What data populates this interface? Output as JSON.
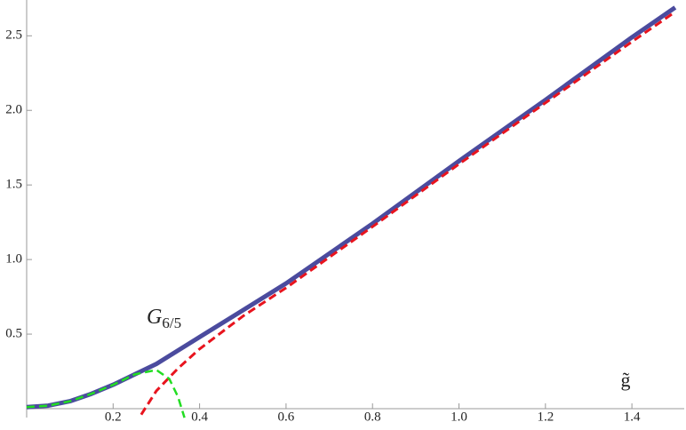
{
  "chart_data": {
    "type": "line",
    "xlabel": "g̃",
    "annotations": [
      {
        "text": "G",
        "subscript": "6/5"
      }
    ],
    "xlim": [
      0,
      1.52
    ],
    "ylim": [
      0,
      2.74
    ],
    "xticks": [
      0.2,
      0.4,
      0.6,
      0.8,
      {
        "value": 1,
        "label": "1.0"
      },
      1.2,
      1.4
    ],
    "yticks": [
      0.5,
      {
        "value": 1,
        "label": "1.0"
      },
      1.5,
      {
        "value": 2,
        "label": "2.0"
      },
      2.5
    ],
    "series": [
      {
        "color": "#4b4b9e",
        "dash": false,
        "width": 5,
        "x": [
          0,
          0.05,
          0.1,
          0.15,
          0.2,
          0.25,
          0.3,
          0.35,
          0.4,
          0.5,
          0.6,
          0.8,
          1.0,
          1.2,
          1.4,
          1.5
        ],
        "values": [
          0.01,
          0.02,
          0.05,
          0.1,
          0.16,
          0.23,
          0.3,
          0.39,
          0.48,
          0.66,
          0.84,
          1.24,
          1.66,
          2.07,
          2.49,
          2.69
        ]
      },
      {
        "color": "#e8141e",
        "dash": true,
        "width": 3,
        "x": [
          0.265,
          0.3,
          0.35,
          0.4,
          0.5,
          0.6,
          0.8,
          1.0,
          1.2,
          1.4,
          1.5
        ],
        "values": [
          -0.04,
          0.12,
          0.27,
          0.4,
          0.62,
          0.81,
          1.22,
          1.64,
          2.05,
          2.46,
          2.66
        ]
      },
      {
        "color": "#22dd22",
        "dash": true,
        "width": 2.5,
        "x": [
          0,
          0.05,
          0.1,
          0.15,
          0.2,
          0.25,
          0.3,
          0.33,
          0.35,
          0.365
        ],
        "values": [
          0.01,
          0.02,
          0.05,
          0.1,
          0.16,
          0.23,
          0.26,
          0.2,
          0.08,
          -0.06
        ]
      }
    ]
  }
}
